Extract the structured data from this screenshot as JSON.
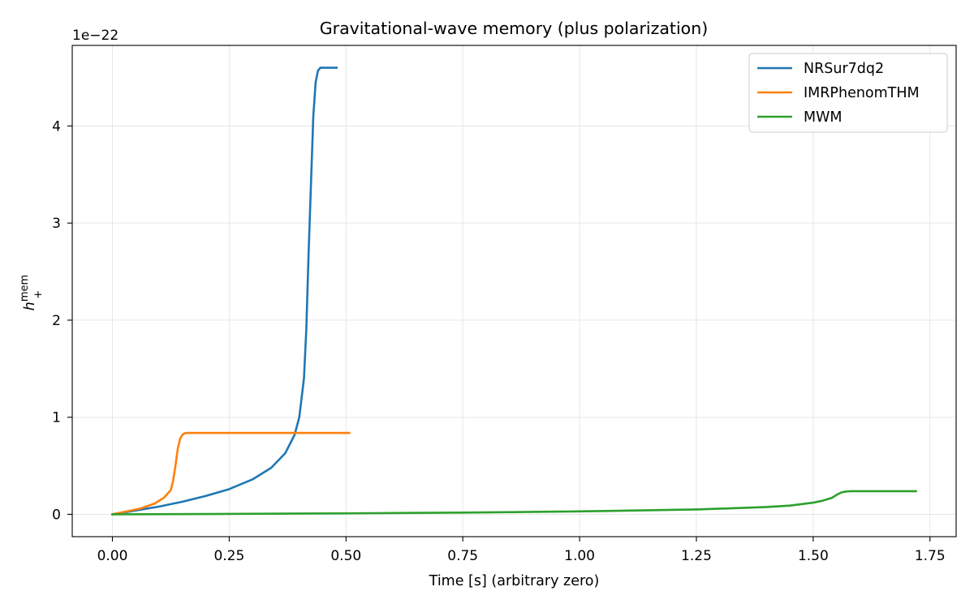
{
  "chart_data": {
    "type": "line",
    "title": "Gravitational-wave memory (plus polarization)",
    "xlabel": "Time [s] (arbitrary zero)",
    "ylabel": "h+mem",
    "y_offset_text": "1e−22",
    "xlim": [
      -0.086,
      1.806
    ],
    "ylim": [
      -0.23,
      4.83
    ],
    "x_ticks": [
      0.0,
      0.25,
      0.5,
      0.75,
      1.0,
      1.25,
      1.5,
      1.75
    ],
    "x_tick_labels": [
      "0.00",
      "0.25",
      "0.50",
      "0.75",
      "1.00",
      "1.25",
      "1.50",
      "1.75"
    ],
    "y_ticks": [
      0,
      1,
      2,
      3,
      4
    ],
    "y_tick_labels": [
      "0",
      "1",
      "2",
      "3",
      "4"
    ],
    "grid": true,
    "legend_position": "top-right",
    "series": [
      {
        "name": "NRSur7dq2",
        "color": "#1f77b4",
        "x": [
          0.0,
          0.05,
          0.1,
          0.15,
          0.2,
          0.25,
          0.3,
          0.34,
          0.37,
          0.39,
          0.4,
          0.41,
          0.415,
          0.42,
          0.425,
          0.43,
          0.435,
          0.44,
          0.445,
          0.45,
          0.46,
          0.48
        ],
        "y": [
          0.0,
          0.04,
          0.08,
          0.13,
          0.19,
          0.26,
          0.36,
          0.48,
          0.63,
          0.82,
          1.0,
          1.4,
          1.9,
          2.7,
          3.4,
          4.1,
          4.45,
          4.57,
          4.6,
          4.6,
          4.6,
          4.6
        ]
      },
      {
        "name": "IMRPhenomTHM",
        "color": "#ff7f0e",
        "x": [
          0.0,
          0.03,
          0.06,
          0.09,
          0.11,
          0.125,
          0.13,
          0.135,
          0.14,
          0.145,
          0.15,
          0.155,
          0.16,
          0.2,
          0.3,
          0.4,
          0.507
        ],
        "y": [
          0.0,
          0.03,
          0.06,
          0.11,
          0.17,
          0.25,
          0.35,
          0.5,
          0.68,
          0.78,
          0.82,
          0.835,
          0.838,
          0.838,
          0.838,
          0.838,
          0.838
        ]
      },
      {
        "name": "MWM",
        "color": "#2ca02c",
        "x": [
          0.0,
          0.25,
          0.5,
          0.75,
          1.0,
          1.25,
          1.4,
          1.45,
          1.5,
          1.52,
          1.54,
          1.55,
          1.56,
          1.57,
          1.58,
          1.6,
          1.65,
          1.72
        ],
        "y": [
          0.0,
          0.004,
          0.01,
          0.018,
          0.03,
          0.05,
          0.075,
          0.09,
          0.12,
          0.14,
          0.17,
          0.2,
          0.225,
          0.235,
          0.238,
          0.238,
          0.238,
          0.238
        ]
      }
    ]
  }
}
